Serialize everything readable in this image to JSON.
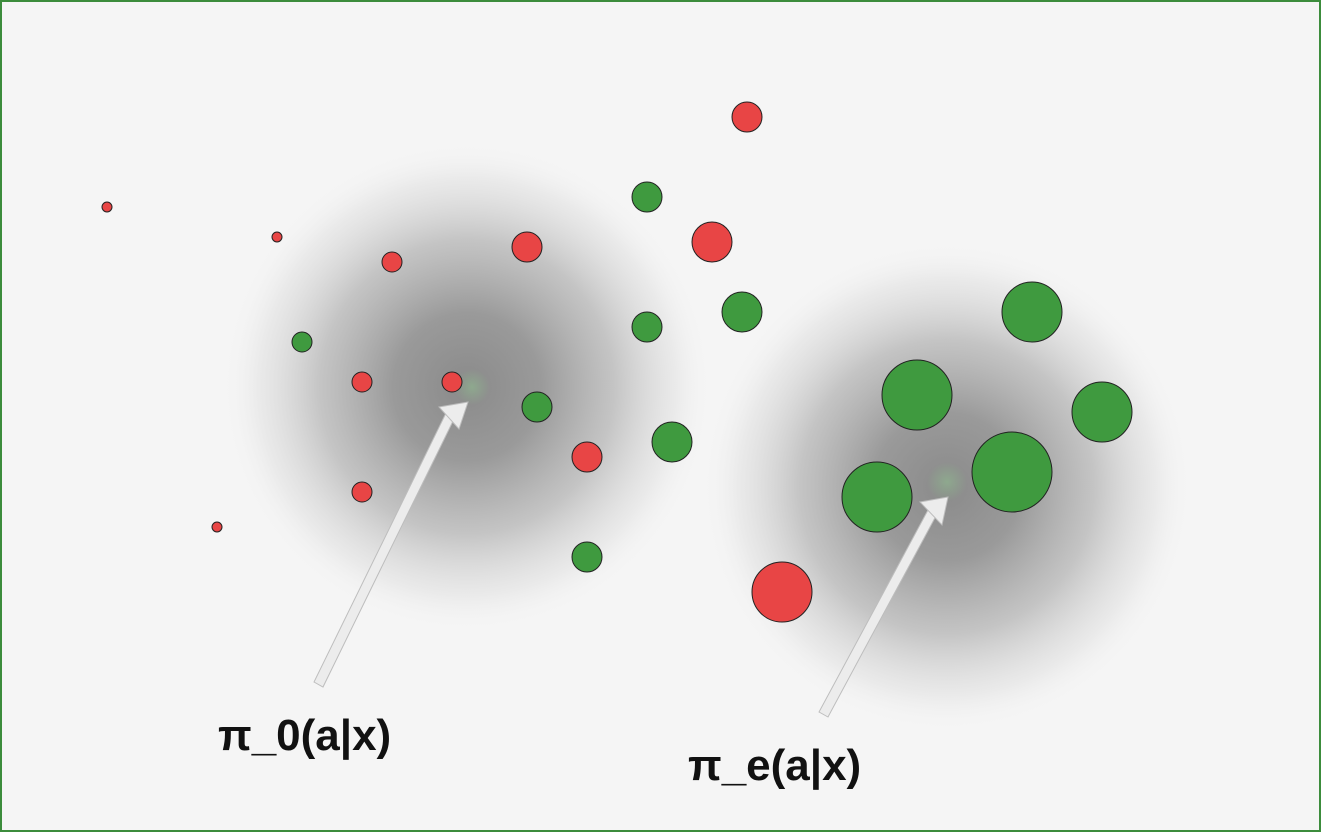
{
  "labels": {
    "pi_0": "π_0(a|x)",
    "pi_e": "π_e(a|x)"
  },
  "colors": {
    "positive": "#3f9a3f",
    "negative": "#e84545",
    "border": "#3c8c3c",
    "background": "#f5f5f5",
    "arrow": "#ececec",
    "cloud": "#7a7a7a"
  }
}
